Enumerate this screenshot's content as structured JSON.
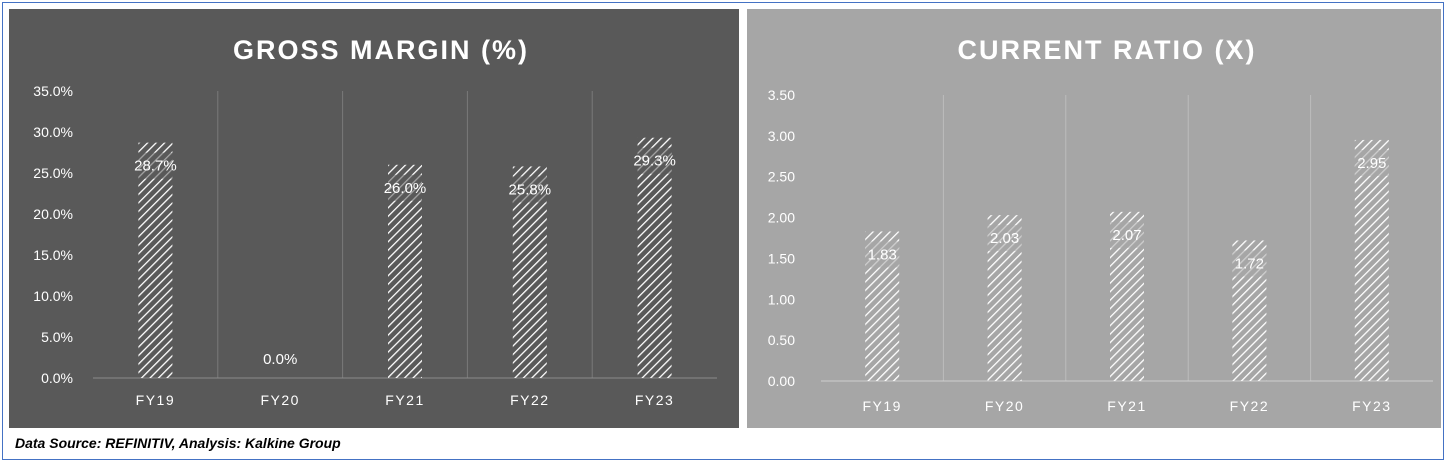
{
  "source_note": "Data Source: REFINITIV, Analysis: Kalkine Group",
  "colors": {
    "left_panel_bg": "#595959",
    "right_panel_bg": "#a6a6a6",
    "bar_hatch": "#ffffff",
    "text": "#ffffff",
    "frame_border": "#4472c4"
  },
  "chart_data": [
    {
      "type": "bar",
      "title": "GROSS MARGIN (%)",
      "categories": [
        "FY19",
        "FY20",
        "FY21",
        "FY22",
        "FY23"
      ],
      "values": [
        28.7,
        0.0,
        26.0,
        25.8,
        29.3
      ],
      "data_labels": [
        "28.7%",
        "0.0%",
        "26.0%",
        "25.8%",
        "29.3%"
      ],
      "yticks": [
        "0.0%",
        "5.0%",
        "10.0%",
        "15.0%",
        "20.0%",
        "25.0%",
        "30.0%",
        "35.0%"
      ],
      "ylim": [
        0,
        35
      ],
      "xlabel": "",
      "ylabel": "",
      "grid": "vertical",
      "legend": "none"
    },
    {
      "type": "bar",
      "title": "CURRENT RATIO (X)",
      "categories": [
        "FY19",
        "FY20",
        "FY21",
        "FY22",
        "FY23"
      ],
      "values": [
        1.83,
        2.03,
        2.07,
        1.72,
        2.95
      ],
      "data_labels": [
        "1.83",
        "2.03",
        "2.07",
        "1.72",
        "2.95"
      ],
      "yticks": [
        "0.00",
        "0.50",
        "1.00",
        "1.50",
        "2.00",
        "2.50",
        "3.00",
        "3.50"
      ],
      "ylim": [
        0,
        3.5
      ],
      "xlabel": "",
      "ylabel": "",
      "grid": "vertical",
      "legend": "none"
    }
  ]
}
